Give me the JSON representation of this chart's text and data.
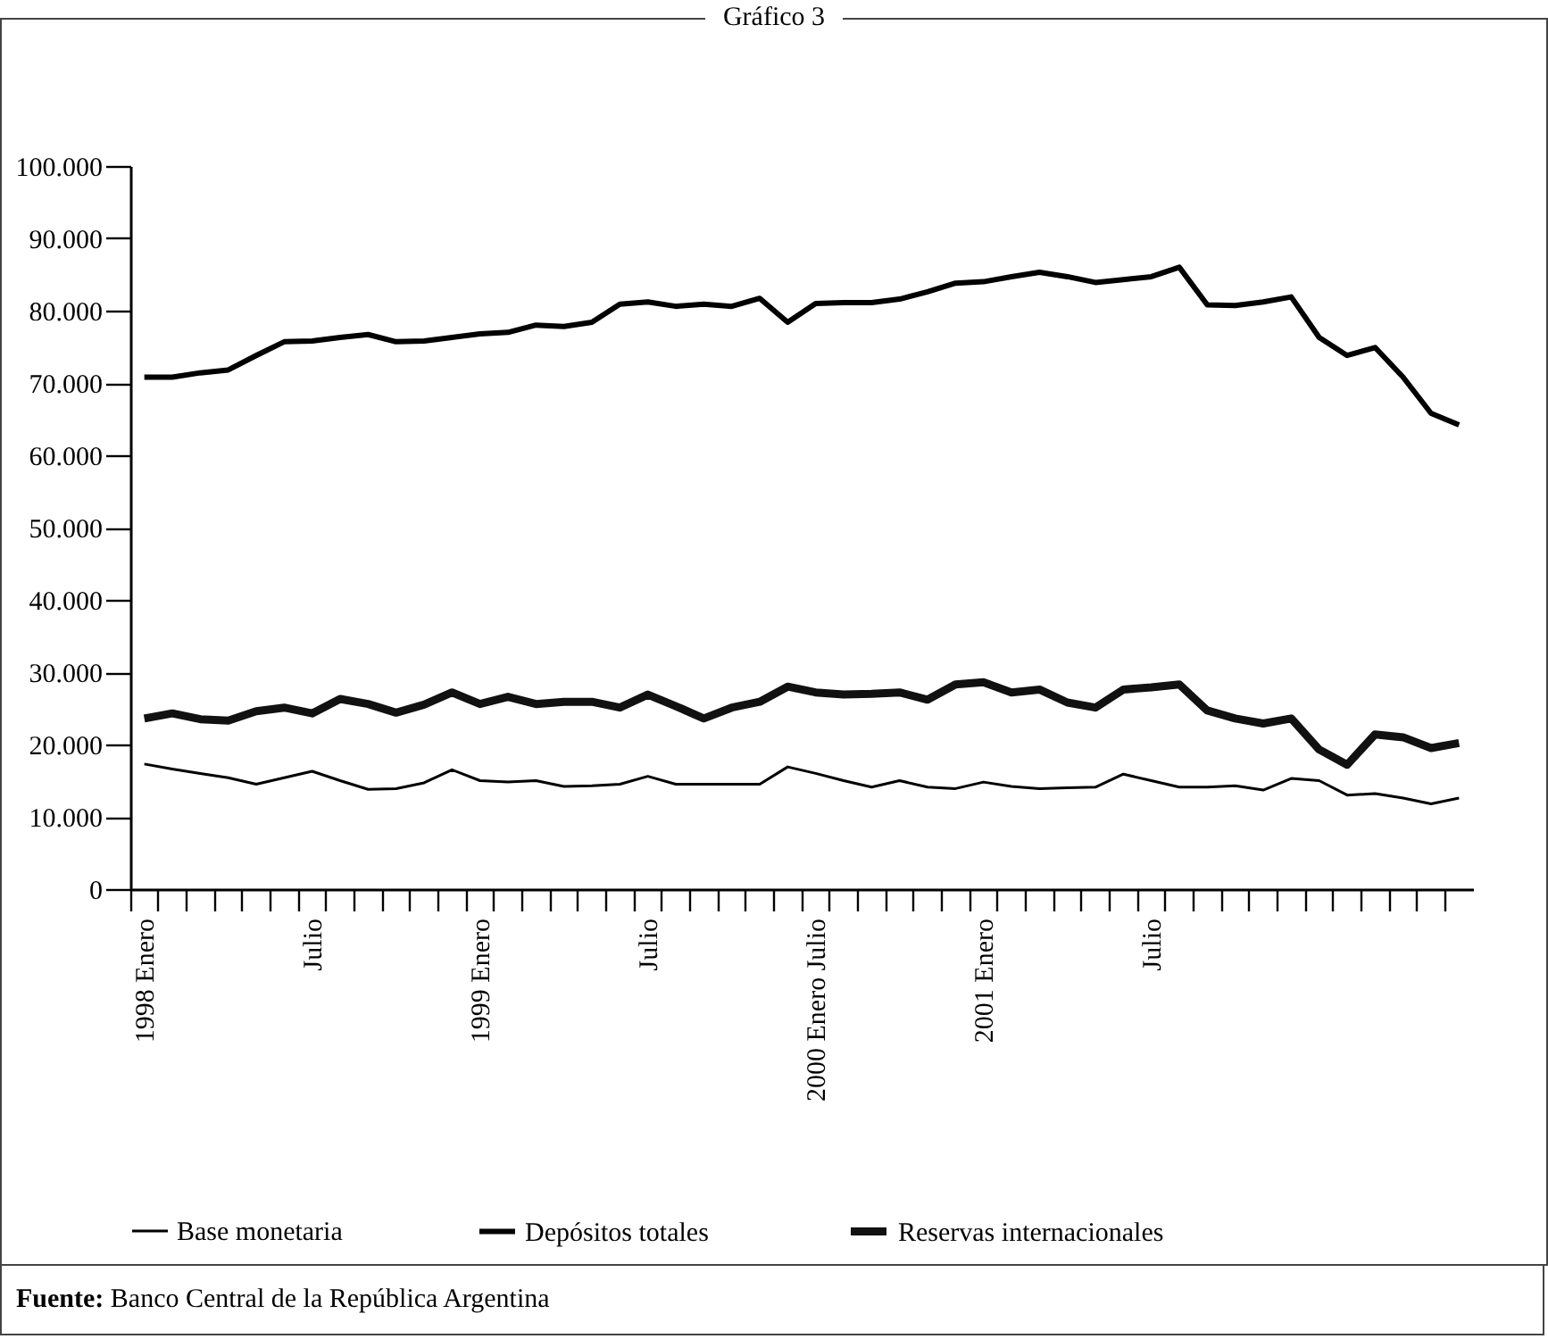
{
  "chart_data": {
    "type": "line",
    "title": "Gráfico 3",
    "categories": [
      "1998 Enero",
      null,
      null,
      null,
      null,
      null,
      "Julio",
      null,
      null,
      null,
      null,
      null,
      "1999 Enero",
      null,
      null,
      null,
      null,
      null,
      "Julio",
      null,
      null,
      null,
      null,
      null,
      "2000 Enero Julio",
      null,
      null,
      null,
      null,
      null,
      "2001 Enero",
      null,
      null,
      null,
      null,
      null,
      "Julio",
      null,
      null,
      null,
      null,
      null,
      null,
      null,
      null,
      null,
      null,
      null
    ],
    "series": [
      {
        "name": "Base monetaria",
        "color": "#000000",
        "values": [
          17300,
          16600,
          16000,
          15400,
          14500,
          15400,
          16300,
          15000,
          13800,
          13900,
          14700,
          16500,
          15000,
          14800,
          15000,
          14200,
          14300,
          14500,
          15600,
          14500,
          14500,
          14500,
          14500,
          16900,
          16000,
          15000,
          14100,
          15000,
          14100,
          13900,
          14800,
          14200,
          13900,
          14000,
          14100,
          15900,
          15000,
          14100,
          14100,
          14300,
          13700,
          15300,
          15000,
          13000,
          13200,
          12600,
          11800,
          12600
        ]
      },
      {
        "name": "Depósitos totales",
        "color": "#000000",
        "values": [
          70800,
          70800,
          71400,
          71800,
          73800,
          75700,
          75800,
          76300,
          76700,
          75700,
          75800,
          76300,
          76800,
          77000,
          78000,
          77800,
          78400,
          80900,
          81200,
          80600,
          80900,
          80600,
          81700,
          78400,
          81000,
          81100,
          81100,
          81600,
          82600,
          83800,
          84000,
          84700,
          85300,
          84700,
          83900,
          84300,
          84700,
          86000,
          80800,
          80700,
          81200,
          81900,
          76300,
          73800,
          74900,
          70800,
          65800,
          64200
        ]
      },
      {
        "name": "Reservas internacionales",
        "color": "#111111",
        "values": [
          23600,
          24300,
          23500,
          23300,
          24600,
          25100,
          24300,
          26300,
          25600,
          24400,
          25500,
          27200,
          25600,
          26600,
          25600,
          25900,
          25900,
          25100,
          26900,
          25300,
          23600,
          25100,
          25900,
          28000,
          27200,
          26900,
          27000,
          27200,
          26200,
          28300,
          28600,
          27200,
          27600,
          25800,
          25100,
          27600,
          27900,
          28300,
          24700,
          23600,
          22900,
          23600,
          19300,
          17200,
          21400,
          21000,
          19500,
          20200
        ]
      }
    ],
    "ylim": [
      0,
      100000
    ],
    "yticks": [
      {
        "value": 0,
        "label": "0"
      },
      {
        "value": 10000,
        "label": "10.000"
      },
      {
        "value": 20000,
        "label": "20.000"
      },
      {
        "value": 30000,
        "label": "30.000"
      },
      {
        "value": 40000,
        "label": "40.000"
      },
      {
        "value": 50000,
        "label": "50.000"
      },
      {
        "value": 60000,
        "label": "60.000"
      },
      {
        "value": 70000,
        "label": "70.000"
      },
      {
        "value": 80000,
        "label": "80.000"
      },
      {
        "value": 90000,
        "label": "90.000"
      },
      {
        "value": 100000,
        "label": "100.000"
      }
    ],
    "legend": "bottom",
    "annotations": [
      "Fuente: Banco Central de la República Argentina"
    ]
  }
}
